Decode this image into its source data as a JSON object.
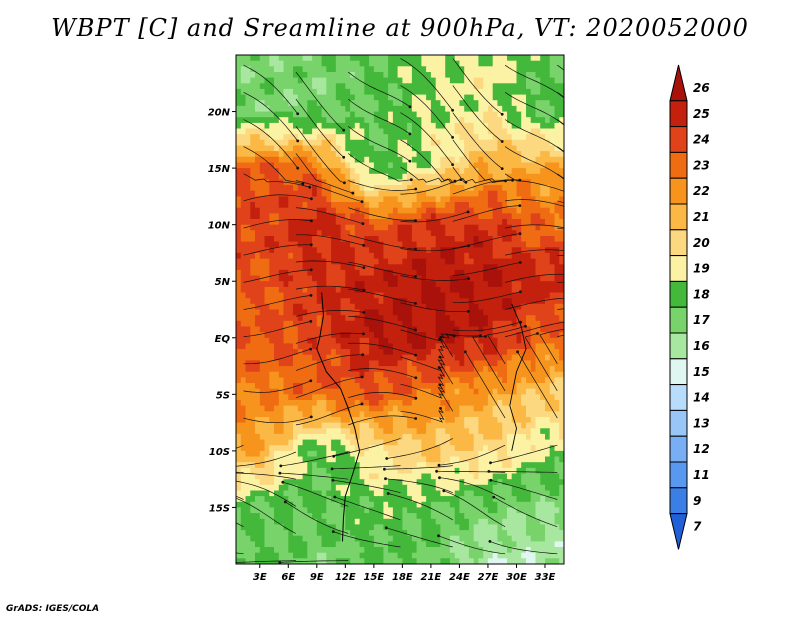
{
  "chart_data": {
    "type": "heatmap",
    "title": "WBPT [C] and Sreamline at 900hPa, VT: 2020052000",
    "xlabel": "",
    "ylabel": "",
    "x_ticks": [
      "3E",
      "6E",
      "9E",
      "12E",
      "15E",
      "18E",
      "21E",
      "24E",
      "27E",
      "30E",
      "33E"
    ],
    "x_tick_values": [
      3,
      6,
      9,
      12,
      15,
      18,
      21,
      24,
      27,
      30,
      33
    ],
    "y_ticks": [
      "20N",
      "15N",
      "10N",
      "5N",
      "EQ",
      "5S",
      "10S",
      "15S"
    ],
    "y_tick_values": [
      20,
      15,
      10,
      5,
      0,
      -5,
      -10,
      -15
    ],
    "xlim": [
      0.5,
      35
    ],
    "ylim": [
      -20,
      25
    ],
    "colorbar": {
      "levels": [
        "7",
        "9",
        "11",
        "12",
        "13",
        "14",
        "15",
        "16",
        "17",
        "18",
        "19",
        "20",
        "21",
        "22",
        "23",
        "24",
        "25",
        "26"
      ],
      "colors": [
        "#2060d8",
        "#3a7ee6",
        "#5898ef",
        "#78aef3",
        "#98c6f7",
        "#b8dcfb",
        "#e0f6f0",
        "#a8e7a0",
        "#78d46a",
        "#44b83a",
        "#fbf2a4",
        "#fcd880",
        "#fbb845",
        "#f7941d",
        "#ef6c12",
        "#e0421a",
        "#c4200e",
        "#a8120a"
      ],
      "extend": "both"
    },
    "field_sample_grid": {
      "lon": [
        3,
        9,
        15,
        21,
        27,
        33
      ],
      "lat": [
        20,
        15,
        10,
        5,
        0,
        -5,
        -10,
        -15,
        -20
      ],
      "values_degC": [
        [
          16.5,
          16.5,
          17,
          18,
          18.5,
          17
        ],
        [
          23,
          22.5,
          17,
          18.5,
          21,
          21
        ],
        [
          23.5,
          24.5,
          23,
          24,
          24,
          22.5
        ],
        [
          23,
          24,
          24.5,
          25,
          25,
          24.5
        ],
        [
          23,
          23.5,
          25,
          25,
          24.5,
          22.5
        ],
        [
          22,
          22.5,
          23,
          22,
          21,
          20
        ],
        [
          21,
          17,
          19,
          20,
          19.5,
          18
        ],
        [
          17,
          17,
          17.5,
          17,
          16.5,
          16
        ],
        [
          17,
          16.5,
          17,
          17,
          15,
          15.5
        ]
      ]
    },
    "overlay": "streamlines",
    "grid": false
  },
  "credit": "GrADS: IGES/COLA"
}
